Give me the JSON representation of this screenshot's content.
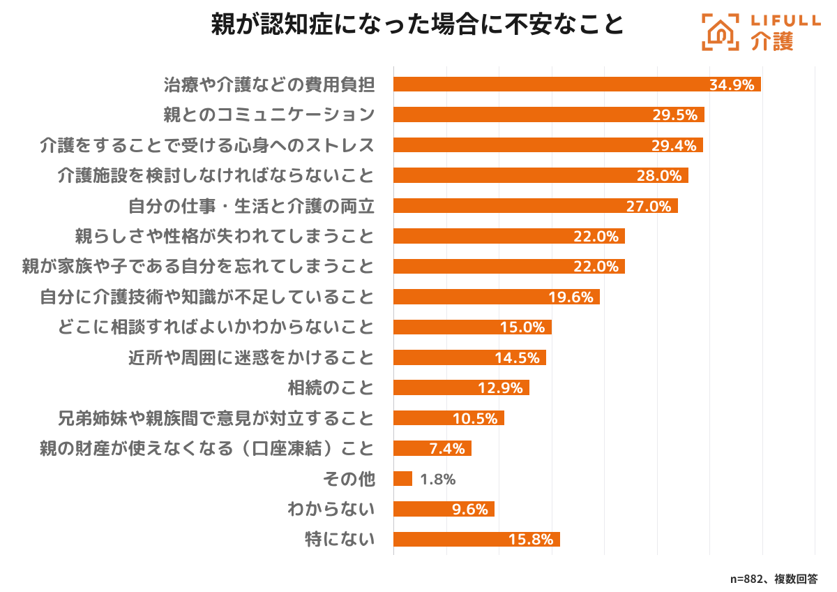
{
  "page": {
    "background": "#FFFFFF"
  },
  "header": {
    "title": "親が認知症になった場合に不安なこと",
    "logo": {
      "brand": "LIFULL",
      "service": "介護",
      "mark": "house-in-viewfinder-icon"
    }
  },
  "footer": {
    "note": "n=882、複数回答"
  },
  "colors": {
    "bar": "#EC6A0C",
    "logo": "#E1742E",
    "category_label": "#6B6B6B",
    "title": "#1A1A1A",
    "footnote": "#2E2E2E",
    "grid": "#EAEAEE",
    "axis": "#C8C8CC",
    "value_label_inside": "#FFFFFF",
    "value_label_outside": "#6B6B6B"
  },
  "chart_data": {
    "type": "bar",
    "orientation": "horizontal",
    "title": "親が認知症になった場合に不安なこと",
    "note": "n=882、複数回答",
    "categories": [
      "治療や介護などの費用負担",
      "親とのコミュニケーション",
      "介護をすることで受ける心身へのストレス",
      "介護施設を検討しなければならないこと",
      "自分の仕事・生活と介護の両立",
      "親らしさや性格が失われてしまうこと",
      "親が家族や子である自分を忘れてしまうこと",
      "自分に介護技術や知識が不足していること",
      "どこに相談すればよいかわからないこと",
      "近所や周囲に迷惑をかけること",
      "相続のこと",
      "兄弟姉妹や親族間で意見が対立すること",
      "親の財産が使えなくなる（口座凍結）こと",
      "その他",
      "わからない",
      "特にない"
    ],
    "values": [
      34.9,
      29.5,
      29.4,
      28.0,
      27.0,
      22.0,
      22.0,
      19.6,
      15.0,
      14.5,
      12.9,
      10.5,
      7.4,
      1.8,
      9.6,
      15.8
    ],
    "value_labels": [
      "34.9%",
      "29.5%",
      "29.4%",
      "28.0%",
      "27.0%",
      "22.0%",
      "22.0%",
      "19.6%",
      "15.0%",
      "14.5%",
      "12.9%",
      "10.5%",
      "7.4%",
      "1.8%",
      "9.6%",
      "15.8%"
    ],
    "xlim": [
      0,
      40
    ],
    "gridline_step": 5,
    "grid": true,
    "legend": false,
    "xlabel": "",
    "ylabel": ""
  }
}
